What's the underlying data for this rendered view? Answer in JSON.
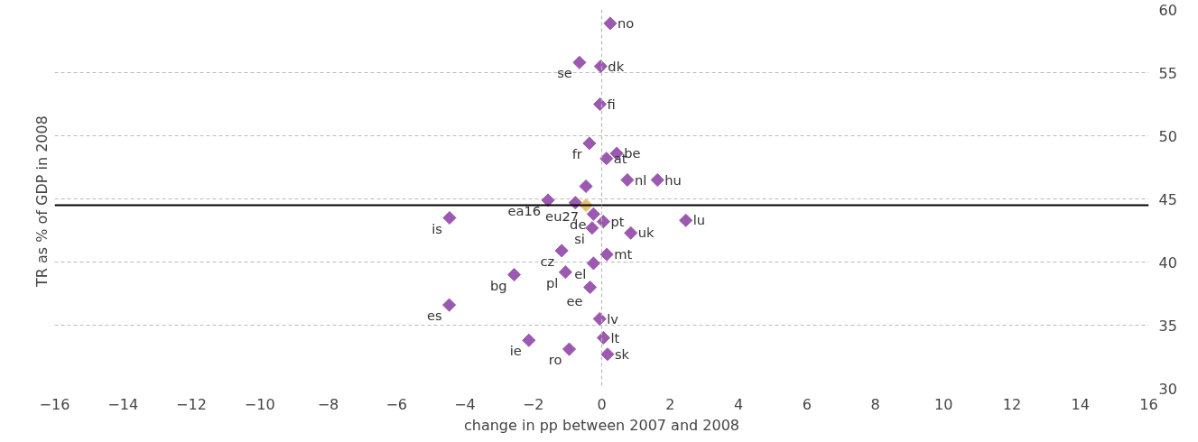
{
  "chart_data": {
    "type": "scatter",
    "xlabel": "change in pp between 2007 and 2008",
    "ylabel": "TR as % of  GDP in 2008",
    "xlim": [
      -16,
      16
    ],
    "xticks": [
      -16,
      -14,
      -12,
      -10,
      -8,
      -6,
      -4,
      -2,
      0,
      2,
      4,
      6,
      8,
      10,
      12,
      14,
      16
    ],
    "ylim": [
      30,
      60
    ],
    "yticks": [
      30,
      35,
      40,
      45,
      50,
      55,
      60
    ],
    "grid": "y",
    "marker": "diamond",
    "series": [
      {
        "color": "#9b59b0",
        "x": [
          0.25,
          -0.65,
          -0.03,
          -0.05,
          -0.36,
          0.44,
          0.14,
          0.75,
          1.63,
          -0.46,
          -1.57,
          -0.77,
          -0.24,
          0.05,
          -0.28,
          0.85,
          2.46,
          -4.45,
          -1.17,
          0.15,
          -0.24,
          -2.56,
          -1.06,
          -0.34,
          -4.46,
          -0.06,
          0.05,
          -2.13,
          -0.95,
          0.17
        ],
        "values": [
          58.9,
          55.8,
          55.5,
          52.5,
          49.4,
          48.6,
          48.2,
          46.5,
          46.5,
          46.0,
          44.9,
          44.7,
          43.8,
          43.2,
          42.7,
          42.3,
          43.3,
          43.5,
          40.9,
          40.6,
          39.9,
          39.0,
          39.2,
          38.0,
          36.6,
          35.5,
          34.0,
          33.8,
          33.1,
          32.7
        ]
      },
      {
        "color": "#e8c170",
        "x": [
          -0.46
        ],
        "values": [
          44.5
        ]
      }
    ],
    "ref_lines": [
      {
        "axis": "y",
        "value": 44.5,
        "color": "#000000",
        "line_style": "solid"
      },
      {
        "axis": "x",
        "value": 0,
        "color": "#bbbbbb",
        "line_style": "dashed"
      }
    ],
    "annotations": [
      {
        "text": "no",
        "x": 0.25,
        "y": 58.9
      },
      {
        "text": "se",
        "x": -0.65,
        "y": 55.8
      },
      {
        "text": "dk",
        "x": -0.03,
        "y": 55.5
      },
      {
        "text": "fi",
        "x": -0.05,
        "y": 52.5
      },
      {
        "text": "fr",
        "x": -0.36,
        "y": 49.4
      },
      {
        "text": "be",
        "x": 0.44,
        "y": 48.6
      },
      {
        "text": "at",
        "x": 0.14,
        "y": 48.2
      },
      {
        "text": "nl",
        "x": 0.75,
        "y": 46.5
      },
      {
        "text": "hu",
        "x": 1.63,
        "y": 46.5
      },
      {
        "text": "ea16",
        "x": -1.57,
        "y": 44.9
      },
      {
        "text": "eu27",
        "x": -0.46,
        "y": 44.5
      },
      {
        "text": "de",
        "x": -0.24,
        "y": 43.8
      },
      {
        "text": "pt",
        "x": 0.05,
        "y": 43.2
      },
      {
        "text": "si",
        "x": -0.28,
        "y": 42.7
      },
      {
        "text": "uk",
        "x": 0.85,
        "y": 42.3
      },
      {
        "text": "lu",
        "x": 2.46,
        "y": 43.3
      },
      {
        "text": "is",
        "x": -4.45,
        "y": 43.5
      },
      {
        "text": "cz",
        "x": -1.17,
        "y": 40.9
      },
      {
        "text": "mt",
        "x": 0.15,
        "y": 40.6
      },
      {
        "text": "el",
        "x": -0.24,
        "y": 39.9
      },
      {
        "text": "bg",
        "x": -2.56,
        "y": 39.0
      },
      {
        "text": "pl",
        "x": -1.06,
        "y": 39.2
      },
      {
        "text": "ee",
        "x": -0.34,
        "y": 38.0
      },
      {
        "text": "es",
        "x": -4.46,
        "y": 36.6
      },
      {
        "text": "lv",
        "x": -0.06,
        "y": 35.5
      },
      {
        "text": "lt",
        "x": 0.05,
        "y": 34.0
      },
      {
        "text": "ie",
        "x": -2.13,
        "y": 33.8
      },
      {
        "text": "ro",
        "x": -0.95,
        "y": 33.1
      },
      {
        "text": "sk",
        "x": 0.17,
        "y": 32.7
      }
    ]
  }
}
